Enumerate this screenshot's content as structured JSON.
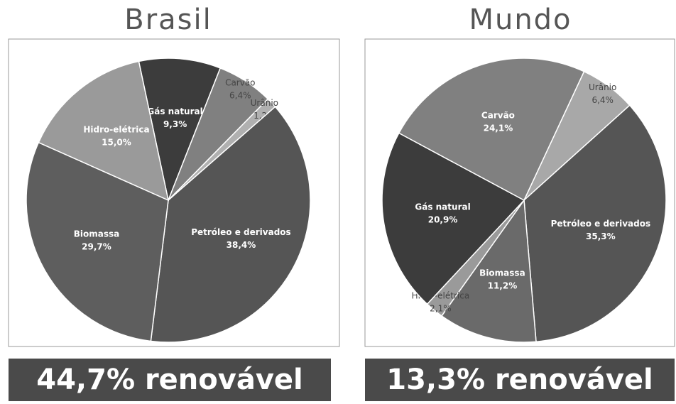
{
  "chart_data": [
    {
      "type": "pie",
      "title": "Brasil",
      "categories": [
        "Gás natural",
        "Carvão",
        "Urânio",
        "Petróleo e derivados",
        "Biomassa",
        "Hidro-elétrica"
      ],
      "values": [
        9.3,
        6.4,
        1.2,
        38.4,
        29.7,
        15.0
      ],
      "value_labels": [
        "9,3%",
        "6,4%",
        "1,2%",
        "38,4%",
        "29,7%",
        "15,0%"
      ],
      "colors": [
        "#3c3c3c",
        "#808080",
        "#b0b0b0",
        "#555555",
        "#5e5e5e",
        "#9a9a9a"
      ],
      "footer": "44,7% renovável"
    },
    {
      "type": "pie",
      "title": "Mundo",
      "categories": [
        "Urânio",
        "Petróleo e derivados",
        "Biomassa",
        "Hidro-elétrica",
        "Gás natural",
        "Carvão"
      ],
      "values": [
        6.4,
        35.3,
        11.2,
        2.1,
        20.9,
        24.1
      ],
      "value_labels": [
        "6,4%",
        "35,3%",
        "11,2%",
        "2,1%",
        "20,9%",
        "24,1%"
      ],
      "colors": [
        "#a8a8a8",
        "#555555",
        "#6a6a6a",
        "#9a9a9a",
        "#3c3c3c",
        "#808080"
      ],
      "footer": "13,3% renovável"
    }
  ]
}
